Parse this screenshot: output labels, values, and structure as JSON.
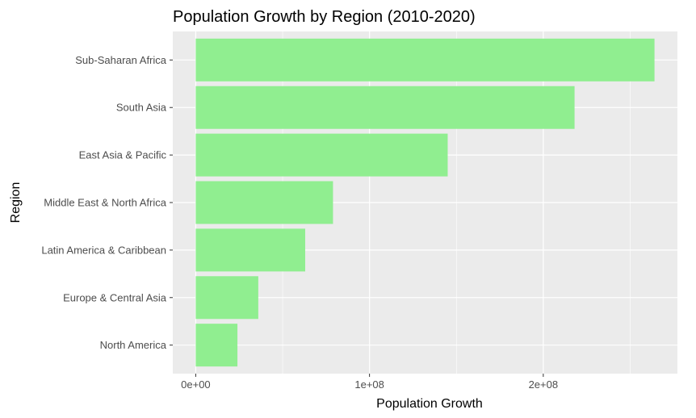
{
  "chart_data": {
    "type": "bar",
    "orientation": "horizontal",
    "title": "Population Growth by Region (2010-2020)",
    "xlabel": "Population Growth",
    "ylabel": "Region",
    "categories": [
      "North America",
      "Europe & Central Asia",
      "Latin America & Caribbean",
      "Middle East & North Africa",
      "East Asia & Pacific",
      "South Asia",
      "Sub-Saharan Africa"
    ],
    "values": [
      24000000,
      36000000,
      63000000,
      79000000,
      145000000,
      218000000,
      264000000
    ],
    "x_ticks": [
      {
        "value": 0,
        "label": "0e+00"
      },
      {
        "value": 100000000,
        "label": "1e+08"
      },
      {
        "value": 200000000,
        "label": "2e+08"
      }
    ],
    "xlim": [
      -13200000,
      277200000
    ],
    "bar_color": "#90EE90",
    "panel_color": "#EBEBEB",
    "grid_color": "#FFFFFF",
    "grid": true,
    "legend": "none"
  }
}
